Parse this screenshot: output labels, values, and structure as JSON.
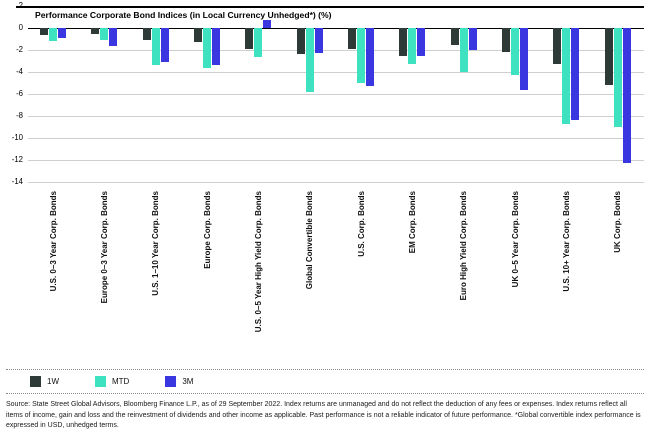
{
  "chart_data": {
    "type": "bar",
    "title": "Performance Corporate Bond Indices (in Local Currency Unhedged*) (%)",
    "categories": [
      "U.S. 0–3 Year Corp. Bonds",
      "Europe 0–3 Year Corp. Bonds",
      "U.S. 1–10 Year Corp. Bonds",
      "Europe Corp. Bonds",
      "U.S. 0–5 Year High Yield Corp. Bonds",
      "Global Convertible Bonds",
      "U.S. Corp. Bonds",
      "EM Corp. Bonds",
      "Euro High Yield Corp. Bonds",
      "UK 0–5 Year Corp. Bonds",
      "U.S. 10+ Year Corp. Bonds",
      "UK Corp. Bonds"
    ],
    "series": [
      {
        "name": "1W",
        "color": "#2e3a38",
        "values": [
          -0.6,
          -0.5,
          -1.1,
          -1.3,
          -1.9,
          -2.4,
          -1.9,
          -2.5,
          -1.5,
          -2.2,
          -3.3,
          -5.2
        ]
      },
      {
        "name": "MTD",
        "color": "#3fe2c0",
        "values": [
          -1.2,
          -1.1,
          -3.4,
          -3.6,
          -2.6,
          -5.8,
          -5.0,
          -3.3,
          -4.0,
          -4.3,
          -8.7,
          -9.0
        ]
      },
      {
        "name": "3M",
        "color": "#3a36e0",
        "values": [
          -0.9,
          -1.6,
          -3.1,
          -3.4,
          0.7,
          -2.3,
          -5.3,
          -2.5,
          -2.0,
          -5.6,
          -8.4,
          -12.3
        ]
      }
    ],
    "ylim": [
      -14,
      2
    ],
    "yticks": [
      2,
      0,
      -2,
      -4,
      -6,
      -8,
      -10,
      -12,
      -14
    ],
    "xlabel": "",
    "ylabel": "",
    "grid": true,
    "legend_position": "bottom"
  },
  "source": {
    "text": "Source: State Street Global Advisors, Bloomberg Finance L.P., as of 29 September 2022. Index returns are unmanaged and do not reflect the deduction of any fees or expenses. Index returns reflect all items of income, gain and loss and the reinvestment of dividends and other income as applicable. Past performance is not a reliable indicator of future performance. *Global convertible index performance is expressed in USD, unhedged terms."
  }
}
